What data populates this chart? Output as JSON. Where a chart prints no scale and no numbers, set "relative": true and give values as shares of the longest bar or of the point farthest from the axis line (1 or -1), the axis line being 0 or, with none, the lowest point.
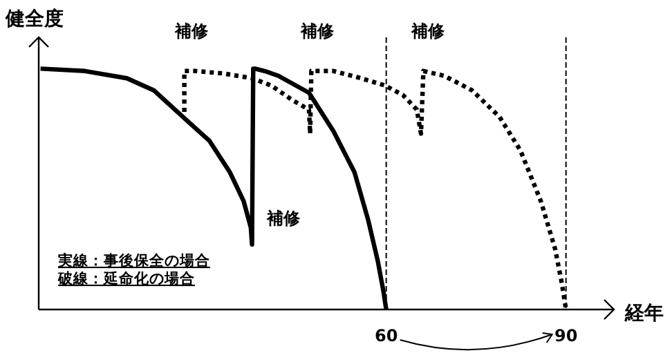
{
  "chart_data": {
    "type": "line",
    "relative": true,
    "xlabel": "経年",
    "ylabel": "健全度",
    "xlim": [
      2,
      98
    ],
    "xticks": [
      60,
      90
    ],
    "tick_labels": "x",
    "grid": false,
    "marker": "none",
    "series": [
      {
        "color": "#000000",
        "line_style": "solid",
        "x": [
          2.3,
          9.7,
          16.7,
          21.2,
          26.5,
          30.5,
          33.9,
          36.2,
          37.4,
          37.6,
          37.8,
          38.1,
          39.7,
          42.0,
          47.1,
          51.2,
          54.7,
          57.0,
          58.6,
          59.5,
          60
        ],
        "values": [
          1,
          0.99,
          0.96,
          0.91,
          0.79,
          0.7,
          0.57,
          0.45,
          0.34,
          0.27,
          1,
          1,
          0.99,
          0.97,
          0.9,
          0.74,
          0.57,
          0.37,
          0.2,
          0.08,
          0
        ]
      },
      {
        "color": "#000000",
        "line_style": "dotted",
        "x": [
          26.3,
          26.3,
          28.2,
          32.8,
          37.6,
          40.8,
          44.3,
          47.1,
          47.3,
          47.5,
          51.2,
          55.8,
          59.8,
          62.8,
          65.1,
          65.8,
          66.2,
          69.7,
          74.3,
          78.9,
          82.4,
          85.8,
          88.2,
          89.3,
          90
        ],
        "values": [
          0.82,
          0.99,
          0.99,
          0.98,
          0.96,
          0.93,
          0.87,
          0.83,
          0.73,
          0.99,
          0.99,
          0.96,
          0.93,
          0.89,
          0.83,
          0.73,
          0.99,
          0.97,
          0.91,
          0.8,
          0.66,
          0.45,
          0.25,
          0.11,
          0
        ]
      }
    ],
    "ref_lines": [
      {
        "axis": "x",
        "value": 60,
        "color": "#000000",
        "line_style": "dashed"
      },
      {
        "axis": "x",
        "value": 90,
        "color": "#000000",
        "line_style": "dashed"
      }
    ],
    "annotations": [
      {
        "text": "補修",
        "x": 26.3,
        "y": 0.99
      },
      {
        "text": "補修",
        "x": 47.3,
        "y": 0.99
      },
      {
        "text": "補修",
        "x": 65.8,
        "y": 0.99
      },
      {
        "text": "補修",
        "x": 37.8,
        "y": 0.27
      },
      "実線：事後保全の場合",
      "破線：延命化の場合"
    ]
  }
}
